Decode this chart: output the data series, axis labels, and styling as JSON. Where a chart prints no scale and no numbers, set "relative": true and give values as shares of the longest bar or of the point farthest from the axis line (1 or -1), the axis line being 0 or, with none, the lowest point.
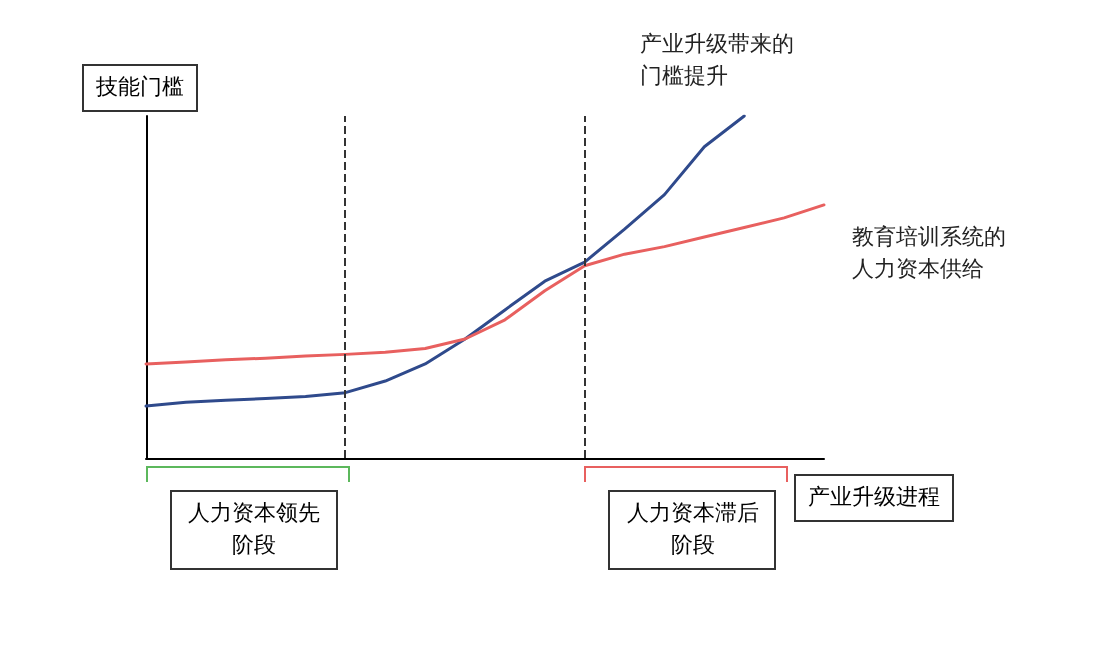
{
  "chart_data": {
    "type": "line",
    "relative": true,
    "xlabel": "产业升级进程",
    "ylabel": "技能门槛",
    "categories": [
      null,
      null,
      null,
      null,
      null,
      null,
      null,
      null,
      null,
      null,
      null,
      null,
      null,
      null,
      null,
      null,
      null,
      null
    ],
    "series": [
      {
        "name": "产业升级带来的门槛提升",
        "color": "#2f4a8c",
        "values": [
          0.152,
          0.163,
          0.169,
          0.174,
          0.18,
          0.191,
          0.225,
          0.275,
          0.348,
          0.433,
          0.517,
          0.573,
          0.669,
          0.77,
          0.91,
          1,
          null,
          null
        ]
      },
      {
        "name": "教育培训系统的人力资本供给",
        "color": "#e8605f",
        "values": [
          0.275,
          0.281,
          0.287,
          0.292,
          0.298,
          0.303,
          0.309,
          0.32,
          0.348,
          0.404,
          0.489,
          0.562,
          0.596,
          0.618,
          0.646,
          0.674,
          0.702,
          0.74
        ]
      }
    ],
    "annotations": [
      "人力资本领先阶段",
      "人力资本滞后阶段"
    ],
    "legend": false,
    "grid": false,
    "marker": "none",
    "line_style": "solid"
  }
}
